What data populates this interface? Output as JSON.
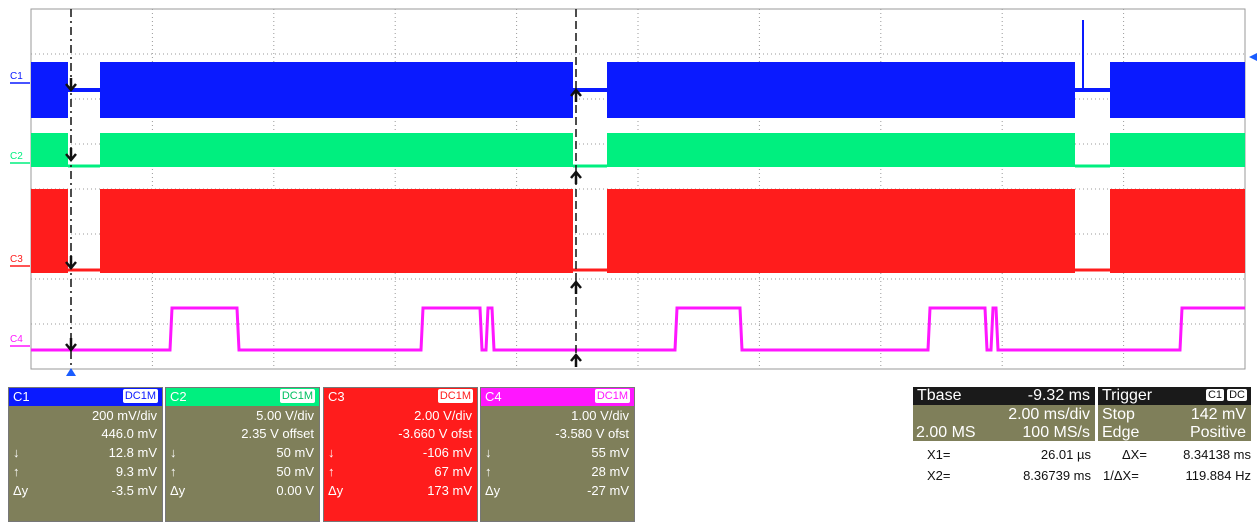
{
  "colors": {
    "c1": "#0a1aff",
    "c2": "#00ef7f",
    "c3": "#ff1c1c",
    "c4": "#ff16ff",
    "grid": "#9a9a9a",
    "panel": "#7f7f5a"
  },
  "channels": [
    {
      "name": "C1",
      "coupling": "DC1M",
      "scale": "200 mV/div",
      "offset": "446.0 mV",
      "down": "12.8 mV",
      "up": "9.3 mV",
      "dy": "-3.5 mV",
      "color": "#0a1aff"
    },
    {
      "name": "C2",
      "coupling": "DC1M",
      "scale": "5.00 V/div",
      "offset": "2.35 V offset",
      "down": "50 mV",
      "up": "50 mV",
      "dy": "0.00 V",
      "color": "#00ef7f"
    },
    {
      "name": "C3",
      "coupling": "DC1M",
      "scale": "2.00 V/div",
      "offset": "-3.660 V ofst",
      "down": "-106 mV",
      "up": "67 mV",
      "dy": "173 mV",
      "color": "#ff1c1c"
    },
    {
      "name": "C4",
      "coupling": "DC1M",
      "scale": "1.00 V/div",
      "offset": "-3.580 V ofst",
      "down": "55 mV",
      "up": "28 mV",
      "dy": "-27 mV",
      "color": "#ff16ff"
    }
  ],
  "symbols": {
    "down": "↓",
    "up": "↑",
    "dy": "Δy"
  },
  "timebase": {
    "label": "Tbase",
    "delay": "-9.32 ms",
    "scale": "2.00 ms/div",
    "samples": "2.00 MS",
    "rate": "100 MS/s"
  },
  "trigger": {
    "label": "Trigger",
    "source": "C1",
    "coupling": "DC",
    "mode": "Stop",
    "level": "142 mV",
    "type": "Edge",
    "slope": "Positive"
  },
  "cursors": {
    "x1_label": "X1=",
    "x1": "26.01 µs",
    "dx_label": "ΔX=",
    "dx": "8.34138 ms",
    "x2_label": "X2=",
    "x2": "8.36739 ms",
    "inv_label": "1/ΔX=",
    "inv": "119.884 Hz"
  },
  "trace_labels": [
    "C1",
    "C2",
    "C3",
    "C4"
  ]
}
